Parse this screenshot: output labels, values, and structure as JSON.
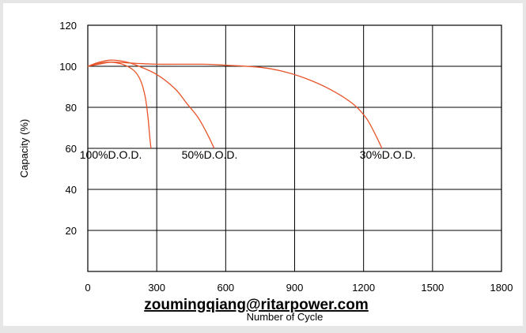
{
  "chart_data": {
    "type": "line",
    "title": "",
    "xlabel": "Number of Cycle",
    "ylabel": "Capacity (%)",
    "xlim": [
      0,
      1800
    ],
    "ylim": [
      0,
      120
    ],
    "x_ticks": [
      "0",
      "300",
      "600",
      "900",
      "1200",
      "1500",
      "1800"
    ],
    "y_ticks": [
      "20",
      "40",
      "60",
      "80",
      "100",
      "120"
    ],
    "grid": true,
    "line_color": "#e8542a",
    "series": [
      {
        "name": "100%D.O.D.",
        "label_at": [
          100,
          55
        ],
        "points": [
          [
            0,
            100
          ],
          [
            50,
            101.5
          ],
          [
            100,
            102
          ],
          [
            150,
            101
          ],
          [
            200,
            98
          ],
          [
            230,
            93
          ],
          [
            250,
            85
          ],
          [
            262,
            75
          ],
          [
            270,
            65
          ],
          [
            275,
            60
          ]
        ]
      },
      {
        "name": "50%D.O.D.",
        "label_at": [
          530,
          55
        ],
        "points": [
          [
            0,
            100
          ],
          [
            50,
            102
          ],
          [
            100,
            103
          ],
          [
            150,
            102.5
          ],
          [
            200,
            101
          ],
          [
            300,
            96
          ],
          [
            380,
            89
          ],
          [
            430,
            82
          ],
          [
            480,
            75
          ],
          [
            520,
            67
          ],
          [
            550,
            60
          ]
        ]
      },
      {
        "name": "30%D.O.D.",
        "label_at": [
          1305,
          55
        ],
        "points": [
          [
            0,
            100
          ],
          [
            50,
            101
          ],
          [
            100,
            102
          ],
          [
            200,
            101.5
          ],
          [
            300,
            101
          ],
          [
            500,
            101
          ],
          [
            600,
            100.5
          ],
          [
            750,
            99.5
          ],
          [
            850,
            97.5
          ],
          [
            950,
            94
          ],
          [
            1050,
            89
          ],
          [
            1150,
            82
          ],
          [
            1210,
            75
          ],
          [
            1250,
            67
          ],
          [
            1280,
            60
          ]
        ]
      }
    ]
  },
  "watermark": "zoumingqiang@ritarpower.com"
}
